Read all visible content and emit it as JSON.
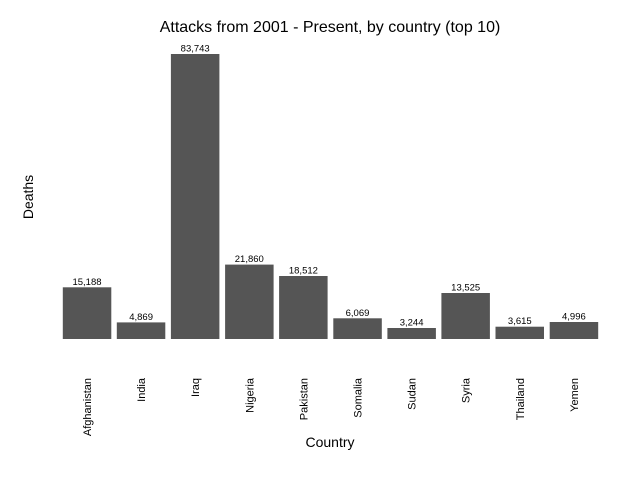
{
  "chart_data": {
    "type": "bar",
    "title": "Attacks from 2001 - Present, by country (top 10)",
    "xlabel": "Country",
    "ylabel": "Deaths",
    "categories": [
      "Afghanistan",
      "India",
      "Iraq",
      "Nigeria",
      "Pakistan",
      "Somalia",
      "Sudan",
      "Syria",
      "Thailand",
      "Yemen"
    ],
    "values": [
      15188,
      4869,
      83743,
      21860,
      18512,
      6069,
      3244,
      13525,
      3615,
      4996
    ],
    "value_labels": [
      "15,188",
      "4,869",
      "83,743",
      "21,860",
      "18,512",
      "6,069",
      "3,244",
      "13,525",
      "3,615",
      "4,996"
    ],
    "ylim": [
      0,
      83743
    ],
    "grid": false,
    "legend": "none",
    "bar_color": "#555555"
  }
}
